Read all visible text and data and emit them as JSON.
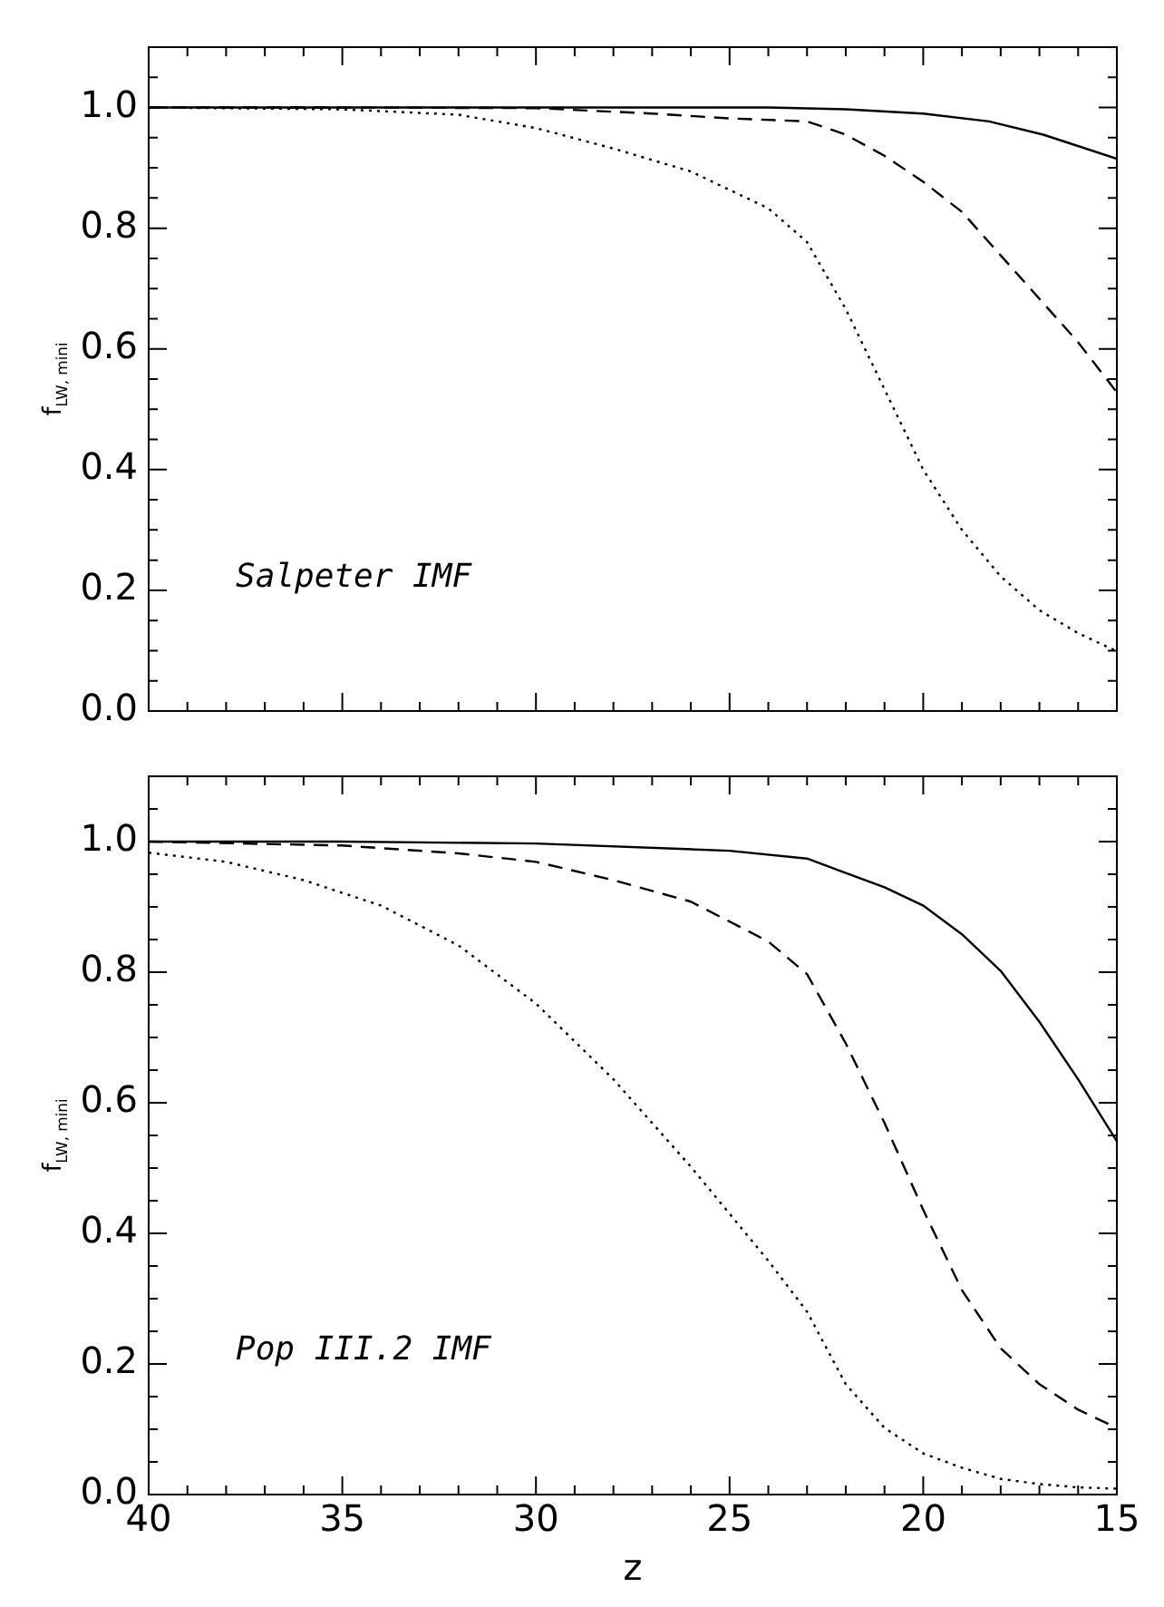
{
  "chart_data": [
    {
      "type": "line",
      "ylabel": "f$_{LW, mini}$",
      "annotations": [
        "Salpeter IMF"
      ],
      "xlim": [
        40,
        15
      ],
      "ylim": [
        0,
        1.1
      ],
      "xticks": [
        40,
        {
          "value": 39,
          "label": null
        },
        {
          "value": 38,
          "label": null
        },
        {
          "value": 37,
          "label": null
        },
        {
          "value": 36,
          "label": null
        },
        35,
        {
          "value": 34,
          "label": null
        },
        {
          "value": 33,
          "label": null
        },
        {
          "value": 32,
          "label": null
        },
        {
          "value": 31,
          "label": null
        },
        30,
        {
          "value": 29,
          "label": null
        },
        {
          "value": 28,
          "label": null
        },
        {
          "value": 27,
          "label": null
        },
        {
          "value": 26,
          "label": null
        },
        25,
        {
          "value": 24,
          "label": null
        },
        {
          "value": 23,
          "label": null
        },
        {
          "value": 22,
          "label": null
        },
        {
          "value": 21,
          "label": null
        },
        20,
        {
          "value": 19,
          "label": null
        },
        {
          "value": 18,
          "label": null
        },
        {
          "value": 17,
          "label": null
        },
        {
          "value": 16,
          "label": null
        },
        15
      ],
      "yticks": [
        {
          "value": 0,
          "label": "0.0"
        },
        {
          "value": 0.05,
          "label": null
        },
        {
          "value": 0.1,
          "label": null
        },
        {
          "value": 0.15,
          "label": null
        },
        0.2,
        {
          "value": 0.25,
          "label": null
        },
        {
          "value": 0.3,
          "label": null
        },
        {
          "value": 0.35,
          "label": null
        },
        0.4,
        {
          "value": 0.45,
          "label": null
        },
        {
          "value": 0.5,
          "label": null
        },
        {
          "value": 0.55,
          "label": null
        },
        0.6,
        {
          "value": 0.65,
          "label": null
        },
        {
          "value": 0.7,
          "label": null
        },
        {
          "value": 0.75,
          "label": null
        },
        0.8,
        {
          "value": 0.85,
          "label": null
        },
        {
          "value": 0.9,
          "label": null
        },
        {
          "value": 0.95,
          "label": null
        },
        {
          "value": 1,
          "label": "1.0"
        },
        {
          "value": 1.05,
          "label": null
        }
      ],
      "tick_labels": "y",
      "grid": false,
      "legend": false,
      "marker": "none",
      "series": [
        {
          "color": "#000000",
          "line_style": "solid",
          "x": [
            40,
            35,
            30,
            25,
            24,
            22,
            20,
            18.3,
            16.9,
            15
          ],
          "values": [
            1.0,
            1.0,
            1.0,
            1.0,
            1.0,
            0.997,
            0.99,
            0.977,
            0.955,
            0.915
          ]
        },
        {
          "color": "#000000",
          "line_style": "dashed",
          "x": [
            40,
            35,
            30,
            27,
            25,
            23,
            22,
            21,
            20,
            19,
            18,
            17,
            16,
            15
          ],
          "values": [
            1.0,
            1.0,
            0.999,
            0.99,
            0.982,
            0.977,
            0.955,
            0.92,
            0.877,
            0.827,
            0.755,
            0.683,
            0.611,
            0.528
          ]
        },
        {
          "color": "#000000",
          "line_style": "dotted",
          "x": [
            40,
            35,
            32,
            30,
            28,
            26,
            24,
            23,
            22,
            21,
            20,
            19,
            18,
            17,
            16,
            15
          ],
          "values": [
            1.0,
            0.997,
            0.988,
            0.966,
            0.932,
            0.894,
            0.833,
            0.777,
            0.666,
            0.533,
            0.4,
            0.3,
            0.223,
            0.167,
            0.129,
            0.099
          ]
        }
      ]
    },
    {
      "type": "line",
      "xlabel": "z",
      "ylabel": "f$_{LW, mini}$",
      "annotations": [
        "Pop III.2 IMF"
      ],
      "xlim": [
        40,
        15
      ],
      "ylim": [
        0,
        1.1
      ],
      "xticks": [
        40,
        {
          "value": 39,
          "label": null
        },
        {
          "value": 38,
          "label": null
        },
        {
          "value": 37,
          "label": null
        },
        {
          "value": 36,
          "label": null
        },
        35,
        {
          "value": 34,
          "label": null
        },
        {
          "value": 33,
          "label": null
        },
        {
          "value": 32,
          "label": null
        },
        {
          "value": 31,
          "label": null
        },
        30,
        {
          "value": 29,
          "label": null
        },
        {
          "value": 28,
          "label": null
        },
        {
          "value": 27,
          "label": null
        },
        {
          "value": 26,
          "label": null
        },
        25,
        {
          "value": 24,
          "label": null
        },
        {
          "value": 23,
          "label": null
        },
        {
          "value": 22,
          "label": null
        },
        {
          "value": 21,
          "label": null
        },
        20,
        {
          "value": 19,
          "label": null
        },
        {
          "value": 18,
          "label": null
        },
        {
          "value": 17,
          "label": null
        },
        {
          "value": 16,
          "label": null
        },
        15
      ],
      "yticks": [
        {
          "value": 0,
          "label": "0.0"
        },
        {
          "value": 0.05,
          "label": null
        },
        {
          "value": 0.1,
          "label": null
        },
        {
          "value": 0.15,
          "label": null
        },
        0.2,
        {
          "value": 0.25,
          "label": null
        },
        {
          "value": 0.3,
          "label": null
        },
        {
          "value": 0.35,
          "label": null
        },
        0.4,
        {
          "value": 0.45,
          "label": null
        },
        {
          "value": 0.5,
          "label": null
        },
        {
          "value": 0.55,
          "label": null
        },
        0.6,
        {
          "value": 0.65,
          "label": null
        },
        {
          "value": 0.7,
          "label": null
        },
        {
          "value": 0.75,
          "label": null
        },
        0.8,
        {
          "value": 0.85,
          "label": null
        },
        {
          "value": 0.9,
          "label": null
        },
        {
          "value": 0.95,
          "label": null
        },
        {
          "value": 1,
          "label": "1.0"
        },
        {
          "value": 1.05,
          "label": null
        }
      ],
      "grid": false,
      "legend": false,
      "marker": "none",
      "series": [
        {
          "color": "#000000",
          "line_style": "solid",
          "x": [
            40,
            35,
            30,
            25,
            23,
            22,
            21,
            20,
            19,
            18,
            17,
            16,
            15
          ],
          "values": [
            1.0,
            1.0,
            0.997,
            0.986,
            0.974,
            0.952,
            0.93,
            0.902,
            0.858,
            0.802,
            0.724,
            0.636,
            0.541
          ]
        },
        {
          "color": "#000000",
          "line_style": "dashed",
          "x": [
            40,
            35,
            32,
            30,
            28,
            26,
            24,
            23,
            22,
            21,
            20,
            19,
            18,
            17,
            16,
            15
          ],
          "values": [
            1.0,
            0.994,
            0.982,
            0.969,
            0.941,
            0.908,
            0.847,
            0.797,
            0.691,
            0.569,
            0.436,
            0.313,
            0.224,
            0.169,
            0.13,
            0.102
          ]
        },
        {
          "color": "#000000",
          "line_style": "dotted",
          "x": [
            40,
            38,
            36,
            34,
            32,
            30,
            28,
            26,
            25,
            24,
            23,
            22,
            21,
            20,
            19,
            18,
            17,
            16,
            15
          ],
          "values": [
            0.983,
            0.969,
            0.941,
            0.902,
            0.841,
            0.752,
            0.636,
            0.502,
            0.43,
            0.358,
            0.28,
            0.169,
            0.102,
            0.063,
            0.041,
            0.024,
            0.016,
            0.011,
            0.009
          ]
        }
      ]
    }
  ]
}
